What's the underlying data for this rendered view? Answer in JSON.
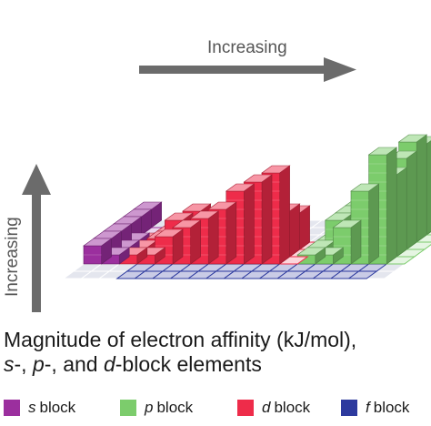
{
  "chart_data": {
    "type": "bar",
    "style": "3d-periodic-table-bars",
    "title_line1": "Magnitude of electron affinity (kJ/mol),",
    "title_line2_parts": [
      "s",
      "-, ",
      "p",
      "-, and ",
      "d",
      "-block elements"
    ],
    "x_arrow_label": "Increasing",
    "y_arrow_label": "Increasing",
    "grid": true,
    "legend_placement": "bottom",
    "legend": [
      {
        "letter": "s",
        "word": "block",
        "color": "#9b2f9e"
      },
      {
        "letter": "p",
        "word": "block",
        "color": "#7ccc6c"
      },
      {
        "letter": "d",
        "word": "block",
        "color": "#ee2c4a"
      },
      {
        "letter": "f",
        "word": "block",
        "color": "#2d3a9e"
      }
    ],
    "value_units": "relative",
    "rows": [
      {
        "period": 1,
        "values": [
          2,
          null,
          null,
          null,
          null,
          null,
          null,
          null,
          null,
          null,
          null,
          null,
          null,
          null,
          null,
          null,
          null,
          0
        ]
      },
      {
        "period": 2,
        "values": [
          2,
          0,
          null,
          null,
          null,
          null,
          null,
          null,
          null,
          null,
          null,
          null,
          1,
          4,
          0,
          4,
          10,
          0
        ]
      },
      {
        "period": 3,
        "values": [
          2,
          0,
          null,
          null,
          null,
          null,
          null,
          null,
          null,
          null,
          null,
          null,
          1,
          4,
          2,
          6,
          11,
          0
        ]
      },
      {
        "period": 4,
        "values": [
          2,
          1,
          1,
          2,
          3,
          3,
          2,
          4,
          5,
          4,
          4,
          0,
          1,
          4,
          3,
          6,
          10,
          0
        ]
      },
      {
        "period": 5,
        "values": [
          2,
          1,
          1,
          2,
          4,
          5,
          3,
          5,
          6,
          5,
          5,
          0,
          1,
          4,
          4,
          6,
          9,
          0
        ]
      },
      {
        "period": 6,
        "values": [
          2,
          1,
          1,
          1,
          3,
          4,
          5,
          6,
          8,
          9,
          10,
          0,
          1,
          1,
          4,
          8,
          12,
          0
        ]
      }
    ]
  },
  "colors": {
    "s": "#9b2f9e",
    "p": "#7ccc6c",
    "d": "#ee2c4a",
    "f": "#2d3a9e",
    "arrow": "#6b6b6b",
    "grid_fill": "#e4e6ee",
    "grid_line": "#ffffff"
  }
}
